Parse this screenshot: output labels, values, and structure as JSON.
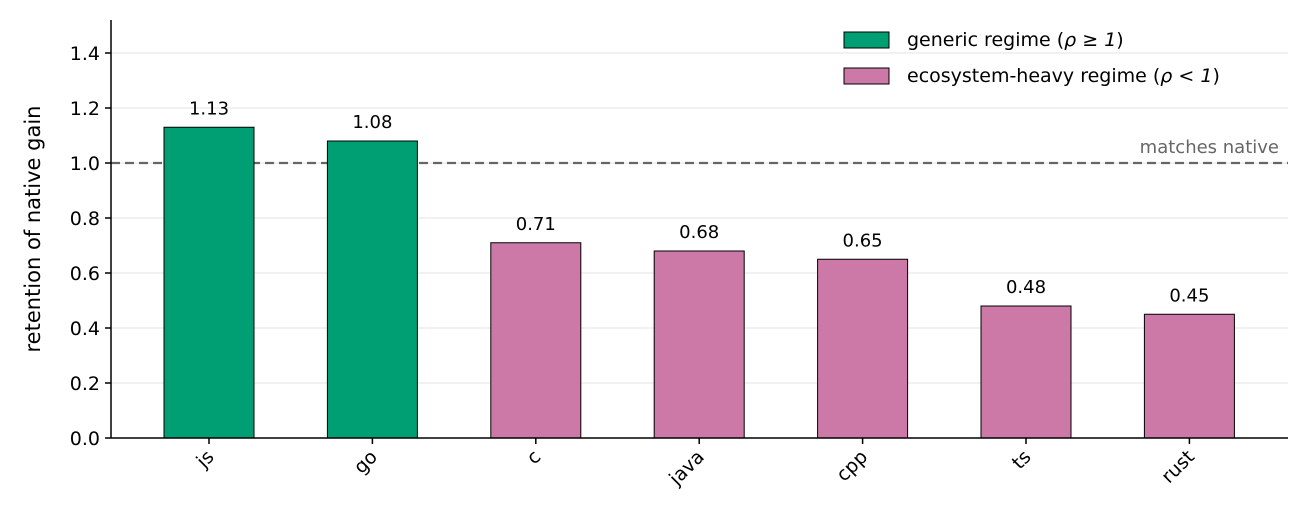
{
  "chart_data": {
    "type": "bar",
    "categories": [
      "js",
      "go",
      "c",
      "java",
      "cpp",
      "ts",
      "rust"
    ],
    "values": [
      1.13,
      1.08,
      0.71,
      0.68,
      0.65,
      0.48,
      0.45
    ],
    "value_labels": [
      "1.13",
      "1.08",
      "0.71",
      "0.68",
      "0.65",
      "0.48",
      "0.45"
    ],
    "groups": [
      "generic",
      "generic",
      "ecosystem",
      "ecosystem",
      "ecosystem",
      "ecosystem",
      "ecosystem"
    ],
    "title": "",
    "xlabel": "",
    "ylabel": "retention of native gain",
    "ylim": [
      0,
      1.52
    ],
    "yticks": [
      0.0,
      0.2,
      0.4,
      0.6,
      0.8,
      1.0,
      1.2,
      1.4
    ],
    "ytick_labels": [
      "0.0",
      "0.2",
      "0.4",
      "0.6",
      "0.8",
      "1.0",
      "1.2",
      "1.4"
    ],
    "grid": "horizontal",
    "legend_position": "top-right",
    "legend": [
      {
        "key": "generic",
        "label_prefix": "generic regime (",
        "label_math": "ρ ≥ 1",
        "label_suffix": ")",
        "color": "#009e73"
      },
      {
        "key": "ecosystem",
        "label_prefix": "ecosystem-heavy regime (",
        "label_math": "ρ < 1",
        "label_suffix": ")",
        "color": "#cc79a7"
      }
    ],
    "reference_line": {
      "y": 1.0,
      "label": "matches native",
      "style": "dashed",
      "color": "#666666"
    }
  }
}
